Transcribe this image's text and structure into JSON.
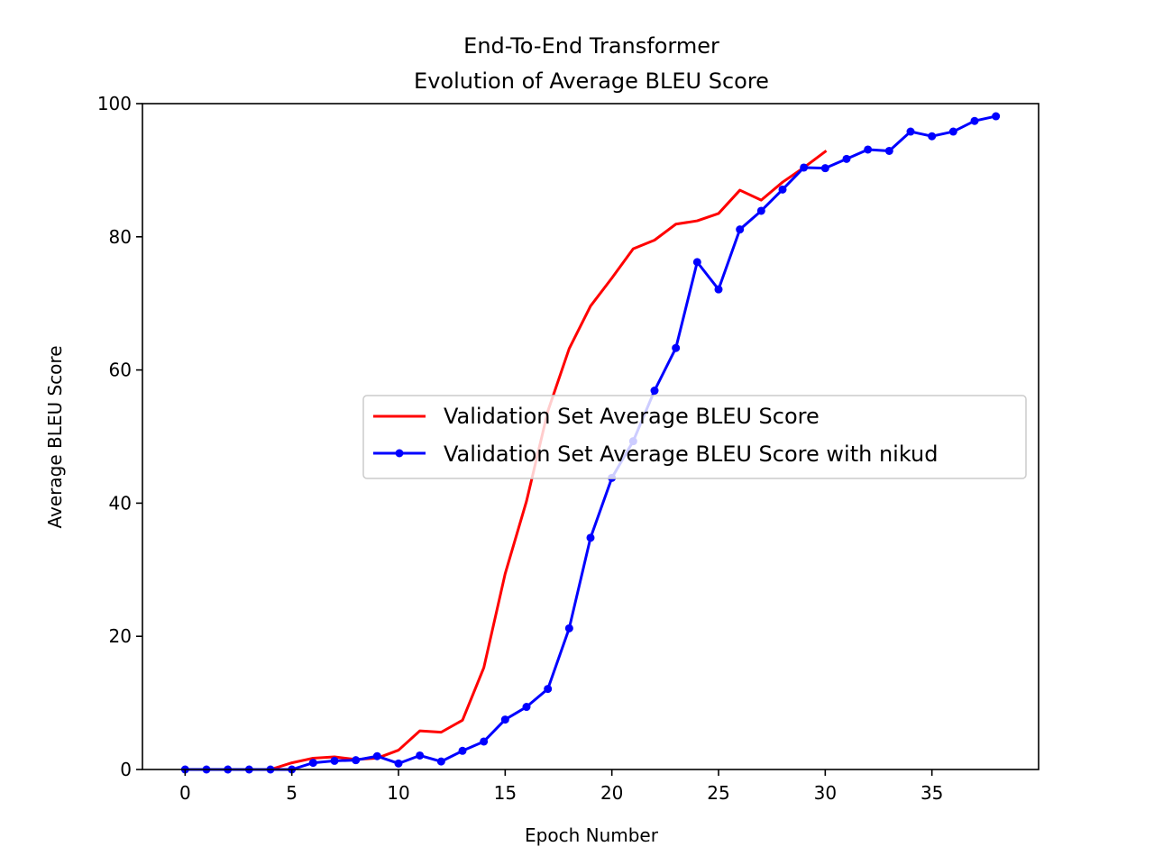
{
  "chart_data": {
    "type": "line",
    "title_line1": "End-To-End Transformer",
    "title_line2": "Evolution of Average BLEU Score",
    "xlabel": "Epoch Number",
    "ylabel": "Average BLEU Score",
    "xlim": [
      -2,
      40
    ],
    "ylim": [
      0,
      100
    ],
    "xticks": [
      0,
      5,
      10,
      15,
      20,
      25,
      30,
      35
    ],
    "yticks": [
      0,
      20,
      40,
      60,
      80,
      100
    ],
    "grid": false,
    "legend_position": "center-right",
    "series": [
      {
        "name": "Validation Set Average BLEU Score",
        "color": "#ff0000",
        "marker": "none",
        "x": [
          0,
          1,
          2,
          3,
          4,
          5,
          6,
          7,
          8,
          9,
          10,
          11,
          12,
          13,
          14,
          15,
          16,
          17,
          18,
          19,
          20,
          21,
          22,
          23,
          24,
          25,
          26,
          27,
          28,
          29,
          30
        ],
        "y": [
          0,
          0,
          0,
          0,
          0,
          1.0,
          1.7,
          1.9,
          1.5,
          1.7,
          2.9,
          5.8,
          5.6,
          7.4,
          15.3,
          29.4,
          40.3,
          53.8,
          63.2,
          69.6,
          73.8,
          78.2,
          79.5,
          81.9,
          82.4,
          83.5,
          87.0,
          85.5,
          88.2,
          90.4,
          92.8
        ]
      },
      {
        "name": "Validation Set Average BLEU Score with nikud",
        "color": "#0000ff",
        "marker": "circle",
        "x": [
          0,
          1,
          2,
          3,
          4,
          5,
          6,
          7,
          8,
          9,
          10,
          11,
          12,
          13,
          14,
          15,
          16,
          17,
          18,
          19,
          20,
          21,
          22,
          23,
          24,
          25,
          26,
          27,
          28,
          29,
          30,
          31,
          32,
          33,
          34,
          35,
          36,
          37,
          38
        ],
        "y": [
          0,
          0,
          0,
          0,
          0,
          0,
          1.0,
          1.3,
          1.4,
          2.0,
          0.9,
          2.1,
          1.2,
          2.8,
          4.2,
          7.5,
          9.4,
          12.1,
          21.2,
          34.8,
          43.8,
          49.3,
          56.9,
          63.3,
          76.2,
          72.1,
          81.1,
          83.9,
          87.1,
          90.4,
          90.3,
          91.7,
          93.1,
          92.9,
          95.8,
          95.1,
          95.8,
          97.4,
          98.1
        ]
      }
    ]
  }
}
